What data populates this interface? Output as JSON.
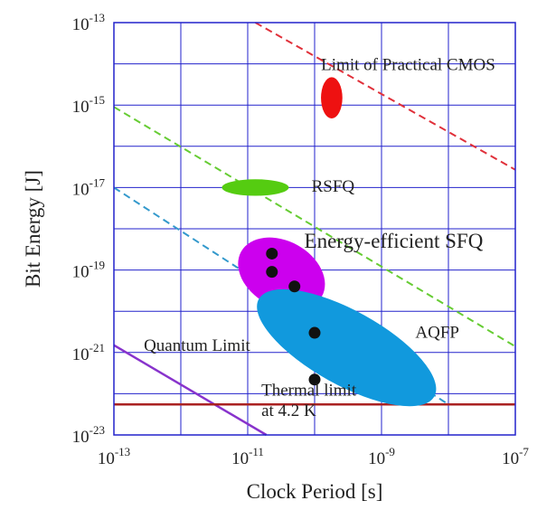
{
  "chart_data": {
    "type": "scatter",
    "title": "",
    "xlabel": "Clock Period [s]",
    "ylabel": "Bit Energy [J]",
    "x_scale": "log",
    "y_scale": "log",
    "xlim": [
      1e-13,
      1e-07
    ],
    "ylim": [
      1e-23,
      1e-13
    ],
    "grid": true,
    "grid_color": "#2222cc",
    "x_ticks": [
      {
        "value": 1e-13,
        "base": "10",
        "exp": "-13"
      },
      {
        "value": 1e-11,
        "base": "10",
        "exp": "-11"
      },
      {
        "value": 1e-09,
        "base": "10",
        "exp": "-9"
      },
      {
        "value": 1e-07,
        "base": "10",
        "exp": "-7"
      }
    ],
    "y_ticks": [
      {
        "value": 1e-13,
        "base": "10",
        "exp": "-13"
      },
      {
        "value": 1e-15,
        "base": "10",
        "exp": "-15"
      },
      {
        "value": 1e-17,
        "base": "10",
        "exp": "-17"
      },
      {
        "value": 1e-19,
        "base": "10",
        "exp": "-19"
      },
      {
        "value": 1e-21,
        "base": "10",
        "exp": "-21"
      },
      {
        "value": 1e-23,
        "base": "10",
        "exp": "-23"
      }
    ],
    "lines": [
      {
        "name": "Limit of Practical CMOS",
        "style": "dashed",
        "color": "#e0303a",
        "x": [
          1.3e-11,
          1e-07
        ],
        "y": [
          1e-13,
          2.7e-17
        ]
      },
      {
        "name": "RSFQ",
        "style": "dashed",
        "color": "#66cc33",
        "x": [
          1e-13,
          1e-07
        ],
        "y": [
          9e-16,
          1.4e-21
        ]
      },
      {
        "name": "AQFP",
        "style": "dashed",
        "color": "#3399cc",
        "x": [
          1e-13,
          1e-08
        ],
        "y": [
          1e-17,
          5.5e-23
        ]
      },
      {
        "name": "Quantum Limit",
        "style": "solid",
        "color": "#8833cc",
        "x": [
          1e-13,
          1.9e-11
        ],
        "y": [
          1.5e-21,
          1e-23
        ]
      },
      {
        "name": "Thermal limit at 4.2 K",
        "style": "solid",
        "color": "#aa2222",
        "x": [
          1e-13,
          1e-07
        ],
        "y": [
          5.5e-23,
          5.5e-23
        ]
      }
    ],
    "regions": [
      {
        "name": "Limit of Practical CMOS",
        "color": "#ee1111",
        "cx": 1.8e-10,
        "cy": 1.5e-15,
        "rx_decades": 0.16,
        "ry_decades": 0.5,
        "angle": 0
      },
      {
        "name": "RSFQ",
        "color": "#55cc11",
        "cx": 1.3e-11,
        "cy": 1e-17,
        "rx_decades": 0.5,
        "ry_decades": 0.2,
        "angle": 0
      },
      {
        "name": "Energy-efficient SFQ",
        "color": "#cc00ee",
        "cx": 3.2e-11,
        "cy": 8e-20,
        "rx_decades": 0.69,
        "ry_decades": 0.8,
        "angle": 29
      },
      {
        "name": "AQFP",
        "color": "#1199dd",
        "cx": 3e-10,
        "cy": 1.3e-21,
        "rx_decades": 1.5,
        "ry_decades": 0.9,
        "angle": 29
      }
    ],
    "points": [
      {
        "x": 2.3e-11,
        "y": 2.5e-19
      },
      {
        "x": 2.3e-11,
        "y": 9e-20
      },
      {
        "x": 5e-11,
        "y": 4e-20
      },
      {
        "x": 1e-10,
        "y": 3e-21
      },
      {
        "x": 1e-10,
        "y": 2.2e-22
      }
    ],
    "annotations": [
      {
        "text": "Limit of Practical CMOS",
        "x": 1.25e-10,
        "y": 7e-15,
        "big": false
      },
      {
        "text": "RSFQ",
        "x": 9e-11,
        "y": 8e-18,
        "big": false
      },
      {
        "text": "Energy-efficient SFQ",
        "x": 7e-11,
        "y": 3.5e-19,
        "big": true
      },
      {
        "text": "AQFP",
        "x": 3.2e-09,
        "y": 2.3e-21,
        "big": false
      },
      {
        "text": "Quantum Limit",
        "x": 2.8e-13,
        "y": 1.1e-21,
        "big": false
      },
      {
        "text": "Thermal limit",
        "x": 1.6e-11,
        "y": 9e-23,
        "big": false
      },
      {
        "text": "at 4.2 K",
        "x": 1.6e-11,
        "y": 2.9e-23,
        "big": false
      }
    ]
  }
}
